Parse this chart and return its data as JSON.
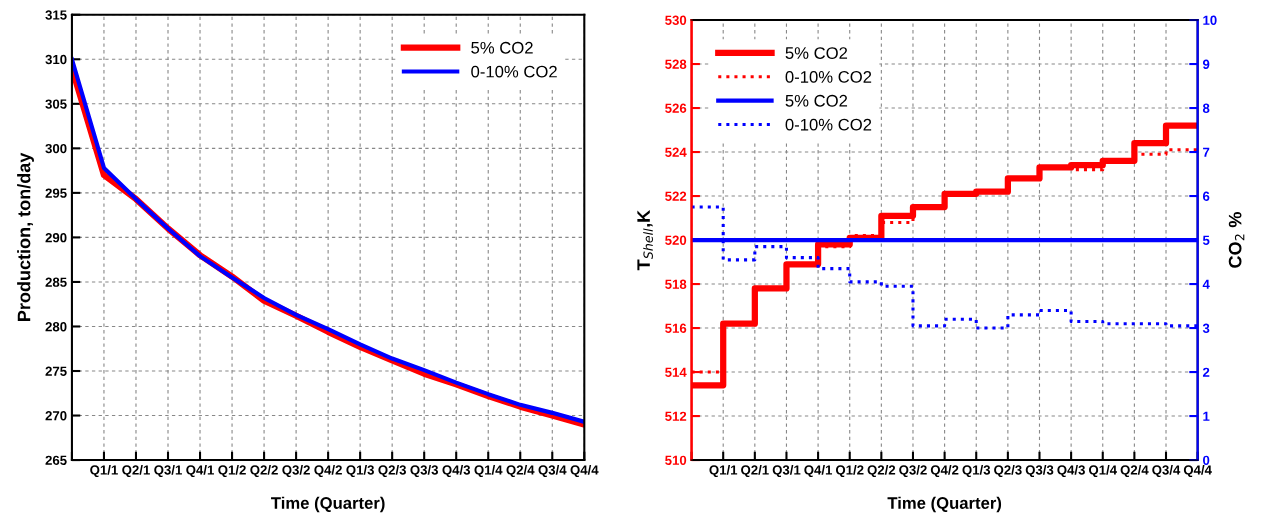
{
  "chart_data": [
    {
      "type": "line",
      "xlabel": "Time (Quarter)",
      "ylabel": "Production, ton/day",
      "ylim": [
        265,
        315
      ],
      "yticks": [
        265,
        270,
        275,
        280,
        285,
        290,
        295,
        300,
        305,
        310,
        315
      ],
      "categories": [
        null,
        "Q1/1",
        "Q2/1",
        "Q3/1",
        "Q4/1",
        "Q1/2",
        "Q2/2",
        "Q3/2",
        "Q4/2",
        "Q1/3",
        "Q2/3",
        "Q3/3",
        "Q4/3",
        "Q1/4",
        "Q2/4",
        "Q3/4",
        "Q4/4"
      ],
      "grid": true,
      "legend": "top right",
      "series": [
        {
          "name": "5% CO2",
          "color": "#ff0000",
          "values": [
            309,
            297,
            294.3,
            291,
            288,
            285.6,
            282.9,
            281.2,
            279.4,
            277.7,
            276.2,
            274.7,
            273.5,
            272.2,
            271,
            270,
            269
          ]
        },
        {
          "name": "0-10% CO2",
          "color": "#0000ff",
          "values": [
            310,
            297.8,
            294.3,
            291,
            287.9,
            285.5,
            283.2,
            281.3,
            279.7,
            278,
            276.4,
            275.1,
            273.7,
            272.4,
            271.2,
            270.3,
            269.3
          ]
        }
      ]
    },
    {
      "type": "step",
      "xlabel": "Time (Quarter)",
      "ylabel": "T$_{Shell}$,K",
      "y2label": "CO$_{2}$ %",
      "ylim": [
        510,
        530
      ],
      "yticks": [
        510,
        512,
        514,
        516,
        518,
        520,
        522,
        524,
        526,
        528,
        530
      ],
      "y2lim": [
        0,
        10
      ],
      "y2ticks": [
        0,
        1,
        2,
        3,
        4,
        5,
        6,
        7,
        8,
        9,
        10
      ],
      "categories": [
        null,
        "Q1/1",
        "Q2/1",
        "Q3/1",
        "Q4/1",
        "Q1/2",
        "Q2/2",
        "Q3/2",
        "Q4/2",
        "Q1/3",
        "Q2/3",
        "Q3/3",
        "Q4/3",
        "Q1/4",
        "Q2/4",
        "Q3/4",
        "Q4/4"
      ],
      "grid": true,
      "legend": "top left",
      "series": [
        {
          "name": "5% CO2",
          "color": "#ff0000",
          "line_style": "solid",
          "values": [
            513.4,
            516.2,
            517.8,
            518.9,
            519.8,
            520.1,
            521.1,
            521.5,
            522.1,
            522.2,
            522.8,
            523.3,
            523.4,
            523.6,
            524.4,
            525.2,
            525.2
          ]
        },
        {
          "name": "0-10% CO2",
          "color": "#ff0000",
          "line_style": "dotted",
          "values": [
            514.0,
            516.2,
            517.8,
            518.9,
            519.7,
            520.2,
            520.8,
            521.5,
            522.1,
            522.2,
            522.8,
            523.3,
            523.2,
            523.6,
            523.9,
            524.1,
            524.1
          ]
        },
        {
          "name": "5% CO2",
          "color": "#0000ff",
          "line_style": "solid",
          "axis": "y2",
          "values": [
            5,
            5,
            5,
            5,
            5,
            5,
            5,
            5,
            5,
            5,
            5,
            5,
            5,
            5,
            5,
            5,
            5
          ]
        },
        {
          "name": "0-10% CO2",
          "color": "#0000ff",
          "line_style": "dotted",
          "axis": "y2",
          "values": [
            5.75,
            4.55,
            4.85,
            4.6,
            4.35,
            4.05,
            3.95,
            3.05,
            3.2,
            3.0,
            3.3,
            3.4,
            3.15,
            3.1,
            3.1,
            3.05,
            3.05
          ]
        }
      ]
    }
  ]
}
